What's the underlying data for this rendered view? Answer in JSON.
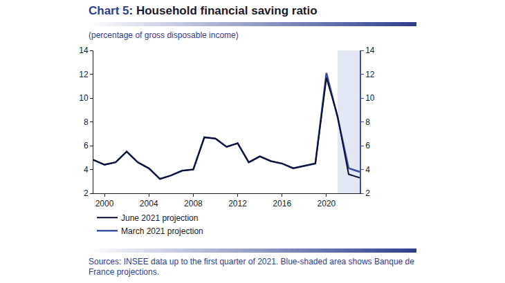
{
  "chart_data": {
    "type": "line",
    "title": "Chart 5: Household financial saving ratio",
    "subtitle": "(percentage of gross disposable income)",
    "note": "Sources: INSEE data up to the first quarter of 2021. Blue-shaded area shows Banque de France projections.",
    "x": [
      1999,
      2000,
      2001,
      2002,
      2003,
      2004,
      2005,
      2006,
      2007,
      2008,
      2009,
      2010,
      2011,
      2012,
      2013,
      2014,
      2015,
      2016,
      2017,
      2018,
      2019,
      2020,
      2021,
      2022,
      2023
    ],
    "series": [
      {
        "name": "June 2021 projection",
        "color": "#0d1030",
        "values": [
          4.8,
          4.4,
          4.6,
          5.5,
          4.6,
          4.1,
          3.2,
          3.5,
          3.9,
          4.0,
          6.7,
          6.6,
          5.9,
          6.2,
          4.6,
          5.1,
          4.7,
          4.5,
          4.1,
          4.3,
          4.5,
          11.7,
          8.5,
          3.6,
          3.3
        ]
      },
      {
        "name": "March 2021 projection",
        "color": "#3b4fa3",
        "values": [
          4.8,
          4.4,
          4.6,
          5.5,
          4.6,
          4.1,
          3.2,
          3.5,
          3.9,
          4.0,
          6.7,
          6.6,
          5.9,
          6.2,
          4.6,
          5.1,
          4.7,
          4.5,
          4.1,
          4.3,
          4.5,
          12.1,
          8.4,
          4.1,
          3.8
        ]
      }
    ],
    "projection_range": [
      2021,
      2023
    ],
    "xlim": [
      1999,
      2023
    ],
    "xticks": [
      2000,
      2004,
      2008,
      2012,
      2016,
      2020
    ],
    "ylim": [
      2,
      14
    ],
    "yticks": [
      2,
      4,
      6,
      8,
      10,
      12,
      14
    ],
    "y2lim": [
      2,
      14
    ],
    "y2ticks": [
      2,
      4,
      6,
      8,
      10,
      12,
      14
    ],
    "grid": false,
    "legend": "bottom left"
  }
}
